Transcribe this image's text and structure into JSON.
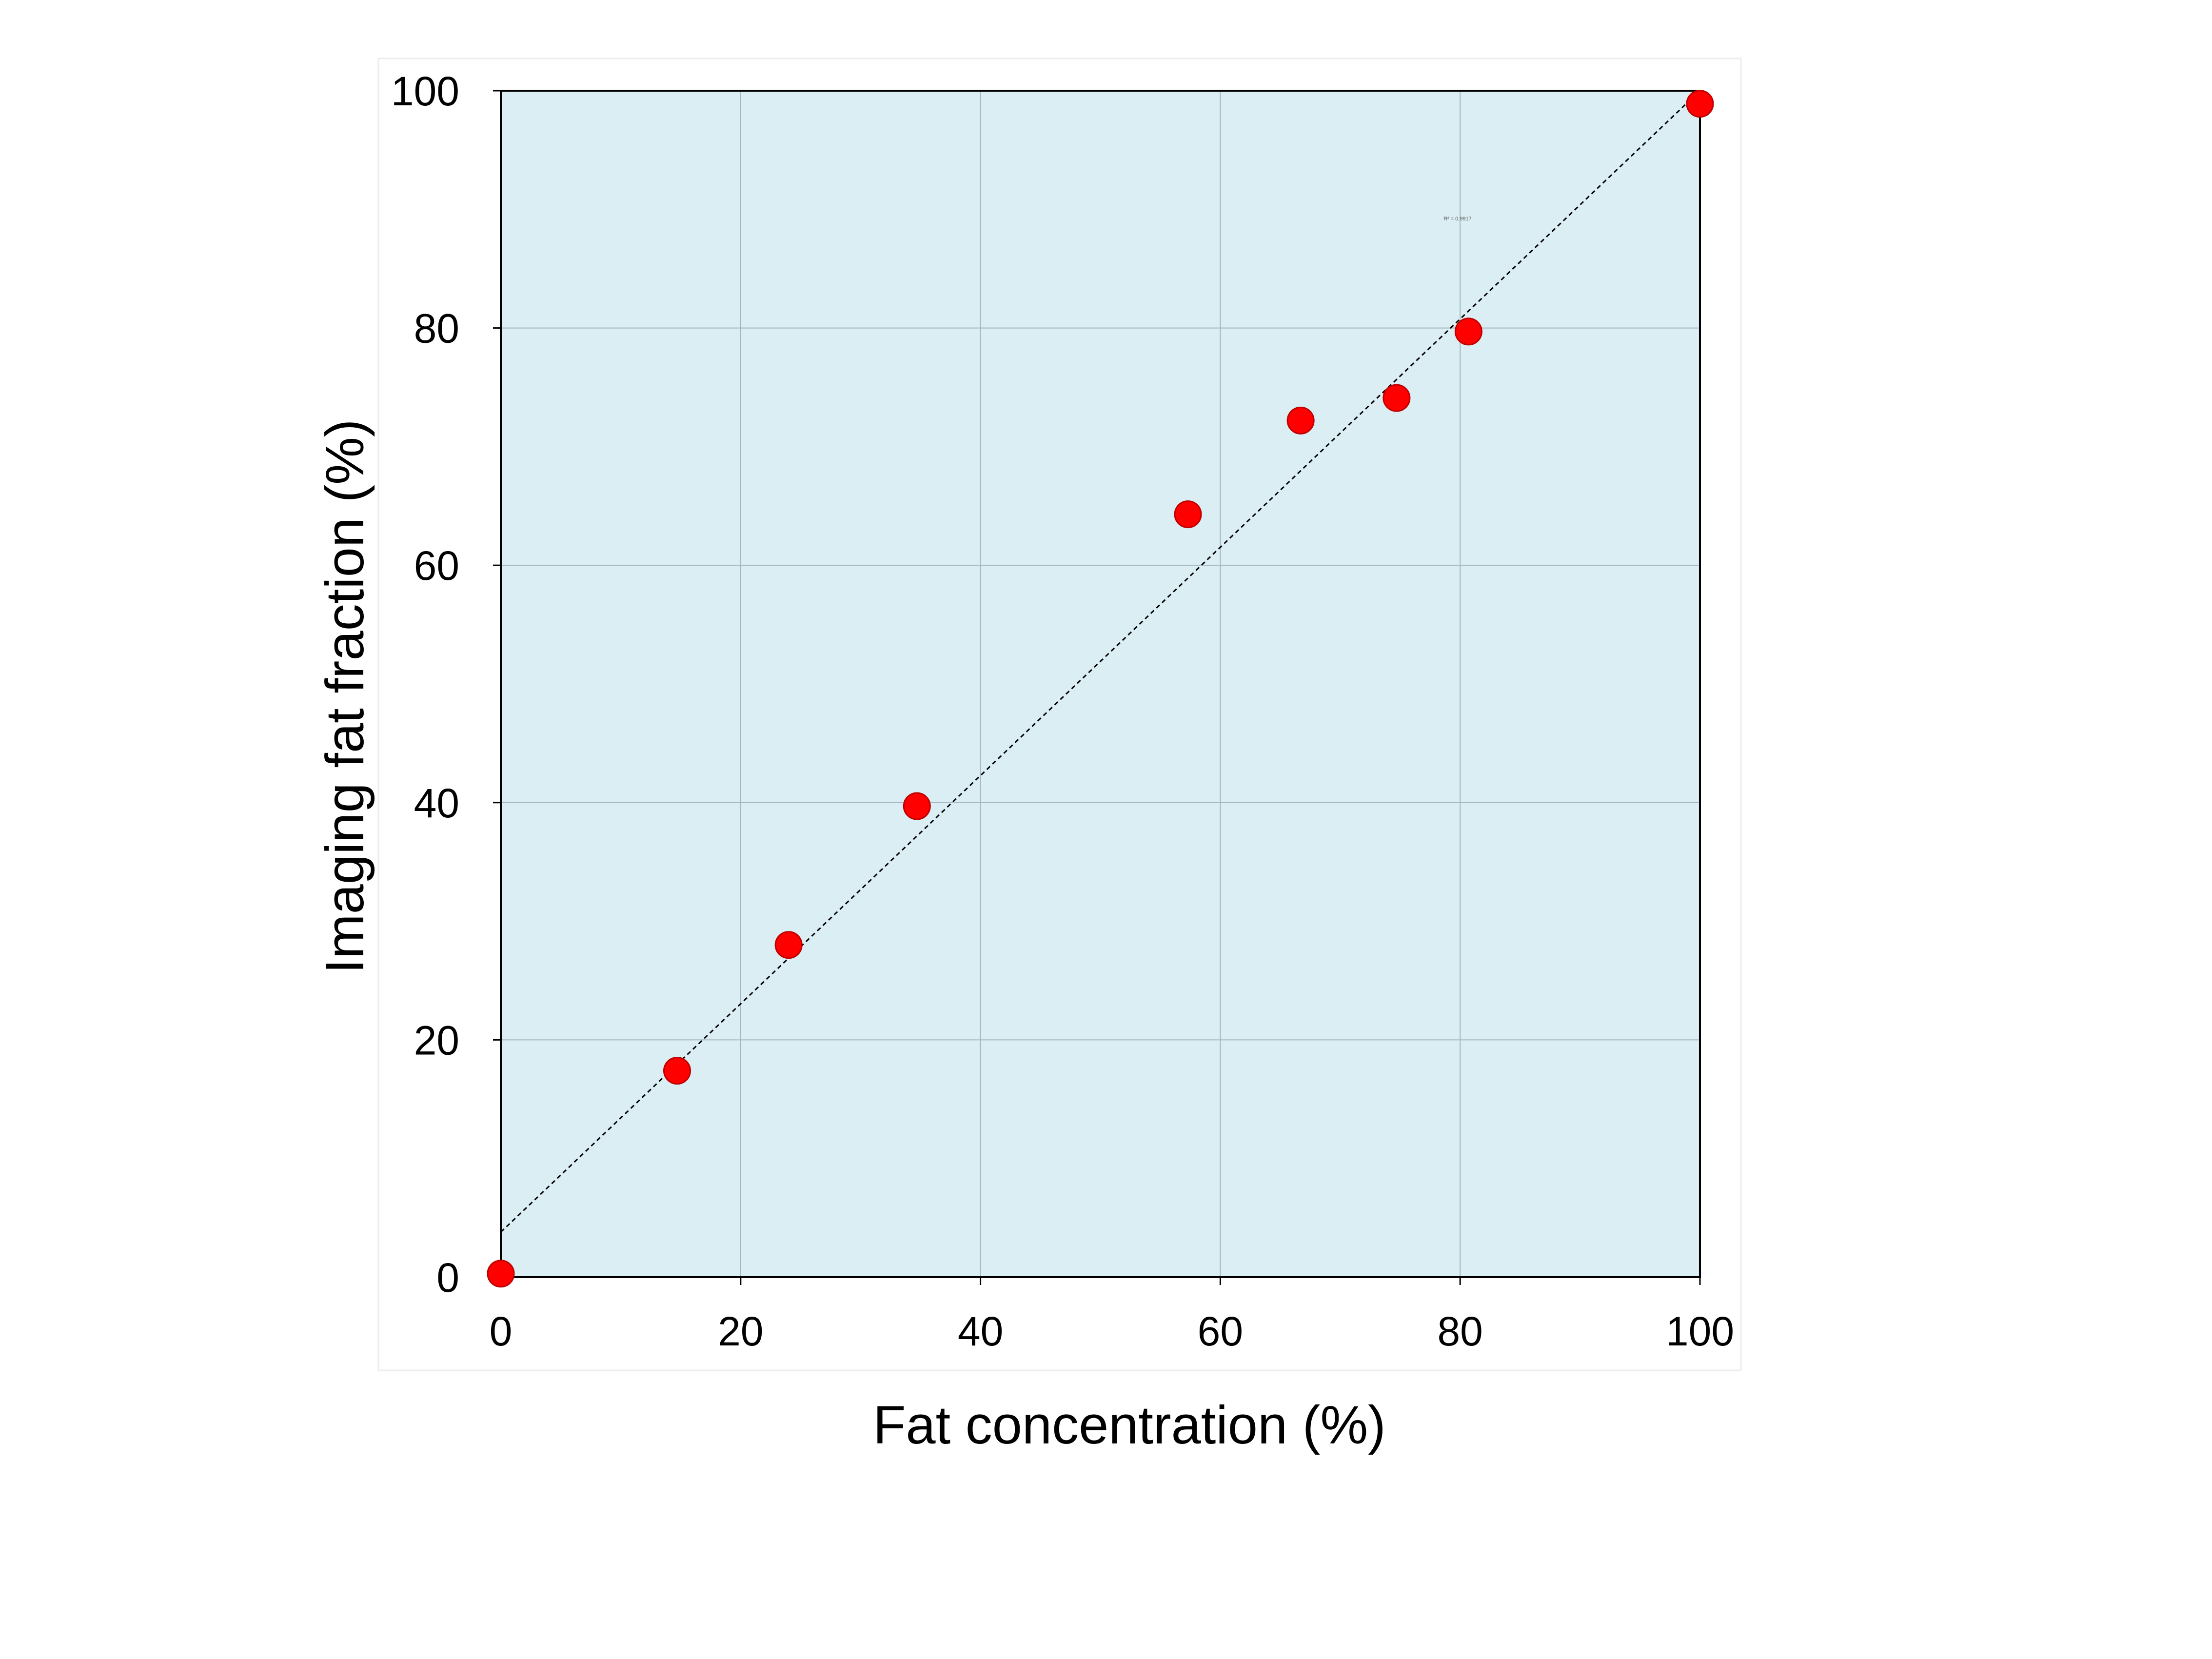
{
  "chart_data": {
    "type": "scatter",
    "title": "",
    "xlabel": "Fat concentration (%)",
    "ylabel": "Imaging  fat  fraction  (%)",
    "xlim": [
      0,
      100
    ],
    "ylim": [
      0,
      100
    ],
    "xticks": [
      "0",
      "20",
      "40",
      "60",
      "80",
      "100"
    ],
    "yticks": [
      "0",
      "20",
      "40",
      "60",
      "80",
      "100"
    ],
    "grid": true,
    "legend": "none",
    "series": [
      {
        "points": [
          {
            "x": 0,
            "y": 0.3
          },
          {
            "x": 14.7,
            "y": 17.4
          },
          {
            "x": 24,
            "y": 28
          },
          {
            "x": 34.7,
            "y": 39.7
          },
          {
            "x": 57.3,
            "y": 64.3
          },
          {
            "x": 66.7,
            "y": 72.2
          },
          {
            "x": 74.7,
            "y": 74.1
          },
          {
            "x": 80.7,
            "y": 79.7
          },
          {
            "x": 100,
            "y": 98.9
          }
        ]
      }
    ],
    "trendline": {
      "style": "dotted",
      "y_at_x0": 3.8,
      "y_at_x100": 100
    },
    "annotation": "R² = 0.9917",
    "colors": {
      "plot_background": "#dbeef3",
      "point_fill": "#ff0000",
      "point_stroke": "#c00000",
      "grid": "#a6b6c0",
      "trendline": "#000000"
    }
  }
}
